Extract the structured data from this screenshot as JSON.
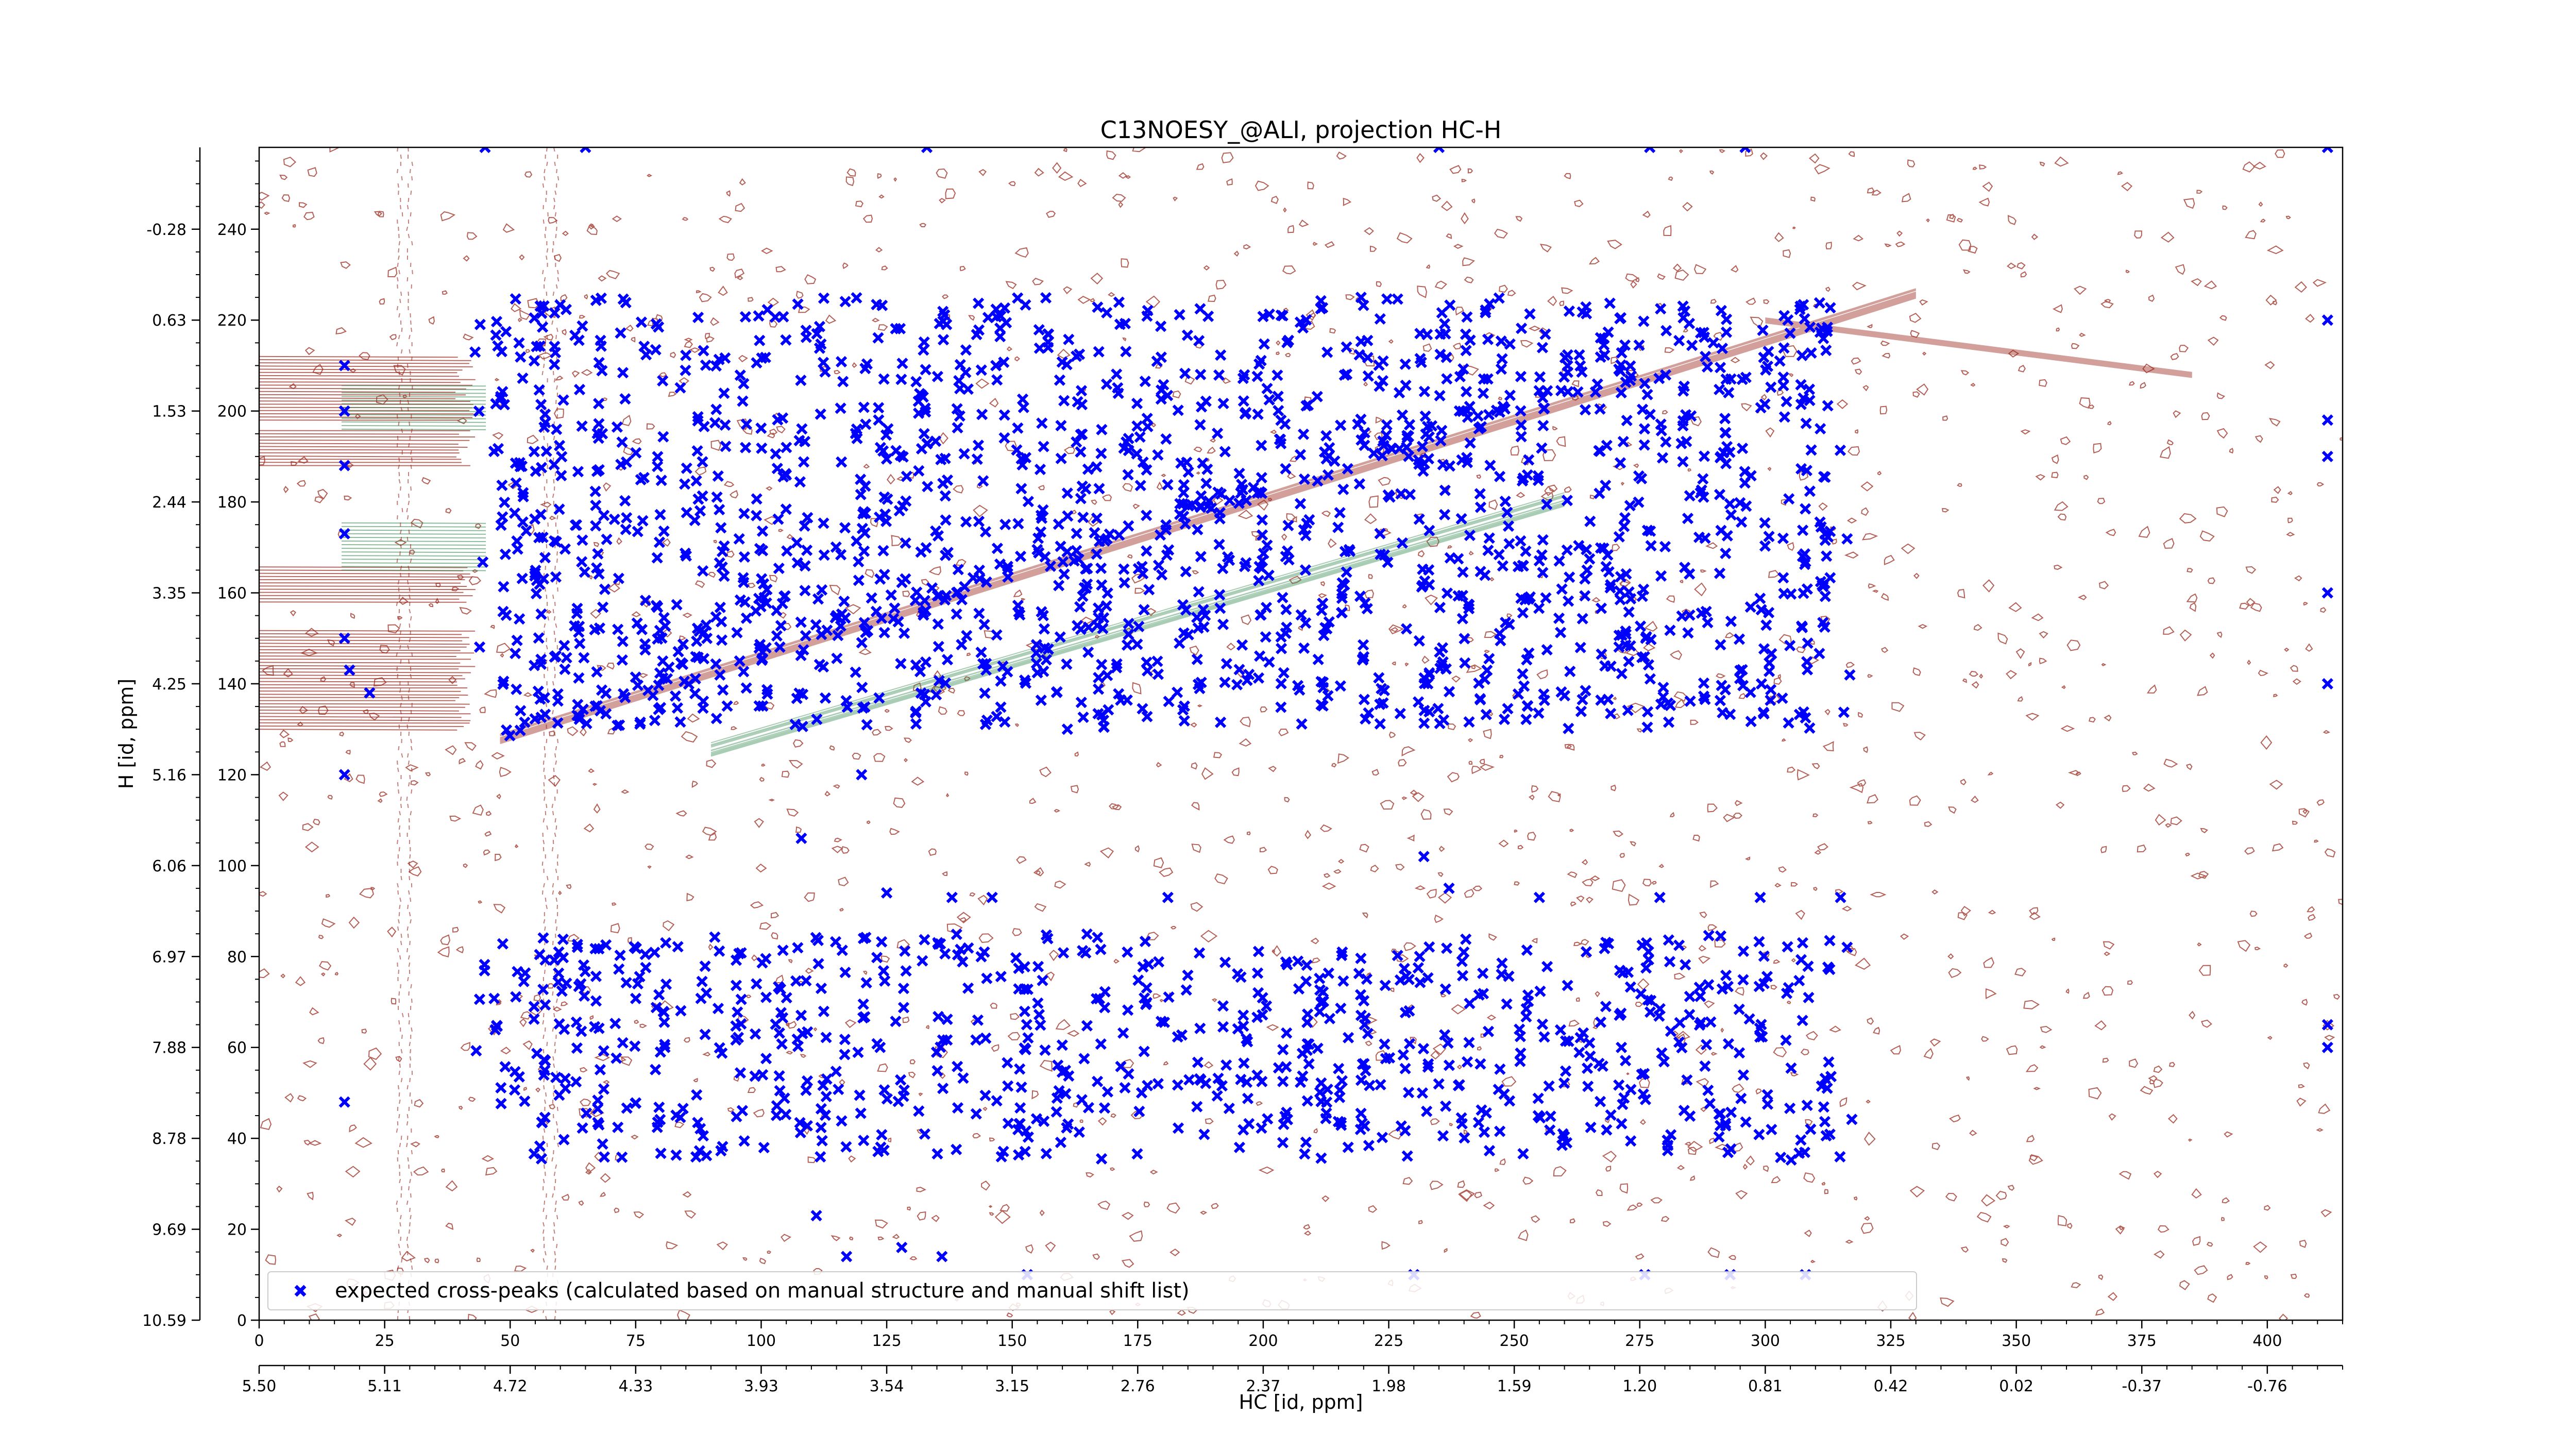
{
  "chart_data": {
    "type": "scatter",
    "title": "C13NOESY_@ALI, projection HC-H",
    "xlabel": "HC [id, ppm]",
    "ylabel": "H [id, ppm]",
    "xlim": [
      0,
      415
    ],
    "ylim": [
      0,
      258
    ],
    "x_ticks_index": [
      "0",
      "25",
      "50",
      "75",
      "100",
      "125",
      "150",
      "175",
      "200",
      "225",
      "250",
      "275",
      "300",
      "325",
      "350",
      "375",
      "400"
    ],
    "x_ticks_ppm": [
      "5.50",
      "5.11",
      "4.72",
      "4.33",
      "3.93",
      "3.54",
      "3.15",
      "2.76",
      "2.37",
      "1.98",
      "1.59",
      "1.20",
      "0.81",
      "0.42",
      "0.02",
      "-0.37",
      "-0.76"
    ],
    "y_ticks_index": [
      "0",
      "20",
      "40",
      "60",
      "80",
      "100",
      "120",
      "140",
      "160",
      "180",
      "200",
      "220",
      "240"
    ],
    "y_ticks_ppm": [
      "10.59",
      "9.69",
      "8.78",
      "7.88",
      "6.97",
      "6.06",
      "5.16",
      "4.25",
      "3.35",
      "2.44",
      "1.53",
      "0.63",
      "-0.28"
    ],
    "grid": false,
    "legend_position": "lower-left",
    "colors": {
      "peaks": "#0000ff",
      "positive_contours": "#9b2b1f",
      "negative_contours": "#3f8f58"
    },
    "series": [
      {
        "name": "expected cross-peaks (calculated based on manual structure and manual shift list)",
        "marker": "x",
        "clusters": [
          {
            "label": "aliphatic upper band",
            "x_range": [
              45,
              315
            ],
            "y_range": [
              170,
              225
            ],
            "count": 850
          },
          {
            "label": "aliphatic middle band",
            "x_range": [
              45,
              315
            ],
            "y_range": [
              130,
              170
            ],
            "count": 700
          },
          {
            "label": "amide band",
            "x_range": [
              45,
              315
            ],
            "y_range": [
              35,
              85
            ],
            "count": 750
          },
          {
            "label": "diagonal",
            "x_from": 50,
            "y_from": 130,
            "x_to": 310,
            "y_to": 222,
            "count": 120
          }
        ],
        "points": [
          [
            17,
            210
          ],
          [
            17,
            200
          ],
          [
            17,
            188
          ],
          [
            17,
            173
          ],
          [
            17,
            150
          ],
          [
            17,
            120
          ],
          [
            17,
            48
          ],
          [
            22,
            138
          ],
          [
            18,
            143
          ],
          [
            412,
            258
          ],
          [
            412,
            220
          ],
          [
            412,
            198
          ],
          [
            412,
            190
          ],
          [
            412,
            160
          ],
          [
            412,
            140
          ],
          [
            412,
            65
          ],
          [
            412,
            60
          ],
          [
            108,
            106
          ],
          [
            120,
            120
          ],
          [
            232,
            102
          ],
          [
            237,
            95
          ],
          [
            255,
            93
          ],
          [
            279,
            93
          ],
          [
            299,
            93
          ],
          [
            315,
            93
          ],
          [
            125,
            94
          ],
          [
            138,
            93
          ],
          [
            146,
            93
          ],
          [
            181,
            93
          ],
          [
            111,
            23
          ],
          [
            117,
            14
          ],
          [
            128,
            16
          ],
          [
            136,
            14
          ],
          [
            153,
            10
          ],
          [
            230,
            10
          ],
          [
            276,
            10
          ],
          [
            293,
            10
          ],
          [
            308,
            10
          ],
          [
            45,
            258
          ],
          [
            65,
            258
          ],
          [
            133,
            258
          ],
          [
            235,
            258
          ],
          [
            277,
            258
          ],
          [
            296,
            258
          ]
        ]
      }
    ]
  }
}
